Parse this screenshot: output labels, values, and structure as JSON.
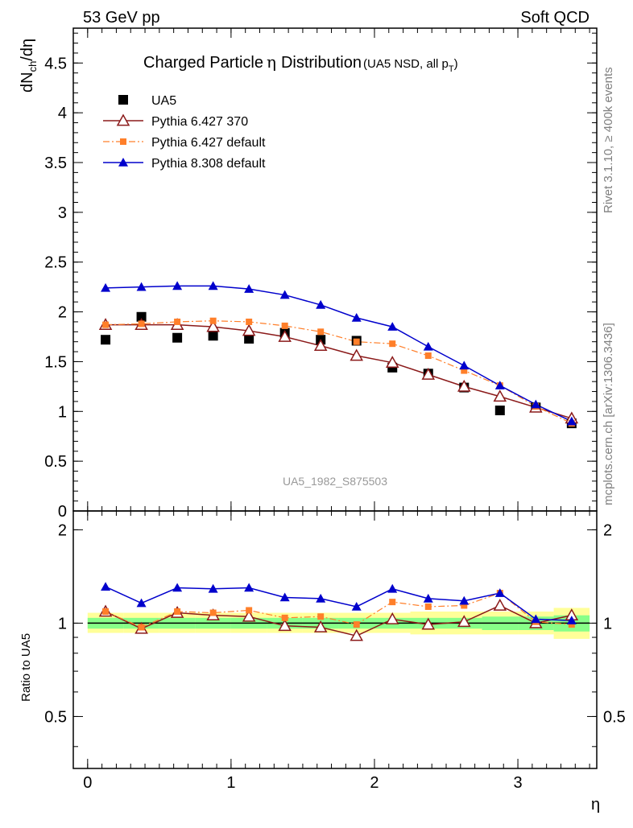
{
  "header": {
    "energy_label": "53 GeV pp",
    "category_label": "Soft QCD"
  },
  "side_text": {
    "rivet": "Rivet 3.1.10, ≥ 400k events",
    "mcplots": "mcplots.cern.ch [arXiv:1306.3436]"
  },
  "analysis_id": "UA5_1982_S875503",
  "chart_data": [
    {
      "type": "scatter",
      "panel": "main",
      "title": "Charged Particle η Distribution",
      "title_main": "Charged Particle",
      "title_eta": "η",
      "title_dist": "Distribution",
      "subtitle_prefix": "(UA5 NSD, all p",
      "subtitle_sub": "T",
      "subtitle_suffix": ")",
      "ylabel_main": "dN",
      "ylabel_sub": "ch",
      "ylabel_tail": "/dη",
      "xlabel": "",
      "xlim": [
        -0.1,
        3.55
      ],
      "ylim": [
        0,
        4.85
      ],
      "yticks": [
        "0",
        "0.5",
        "1",
        "1.5",
        "2",
        "2.5",
        "3",
        "3.5",
        "4",
        "4.5"
      ],
      "ytick_values": [
        0,
        0.5,
        1,
        1.5,
        2,
        2.5,
        3,
        3.5,
        4,
        4.5
      ],
      "x": [
        0.125,
        0.375,
        0.625,
        0.875,
        1.125,
        1.375,
        1.625,
        1.875,
        2.125,
        2.375,
        2.625,
        2.875,
        3.125,
        3.375
      ],
      "series": [
        {
          "name": "UA5",
          "style": "data",
          "color": "#000000",
          "values": [
            1.72,
            1.95,
            1.74,
            1.76,
            1.73,
            1.79,
            1.72,
            1.71,
            1.44,
            1.38,
            1.24,
            1.01,
            1.04,
            0.88
          ]
        },
        {
          "name": "Pythia 6.427 370",
          "style": "open-triangle",
          "color": "#8b1a1a",
          "values": [
            1.87,
            1.87,
            1.87,
            1.85,
            1.81,
            1.75,
            1.66,
            1.56,
            1.49,
            1.37,
            1.25,
            1.15,
            1.04,
            0.93
          ]
        },
        {
          "name": "Pythia 6.427 default",
          "style": "dashdot-square",
          "color": "#ff7f2a",
          "values": [
            1.87,
            1.88,
            1.9,
            1.91,
            1.9,
            1.86,
            1.8,
            1.7,
            1.68,
            1.56,
            1.41,
            1.26,
            1.05,
            0.88
          ]
        },
        {
          "name": "Pythia 8.308 default",
          "style": "filled-triangle",
          "color": "#0000cc",
          "values": [
            2.24,
            2.25,
            2.26,
            2.26,
            2.23,
            2.17,
            2.07,
            1.94,
            1.85,
            1.65,
            1.46,
            1.26,
            1.07,
            0.9
          ]
        }
      ]
    },
    {
      "type": "scatter",
      "panel": "ratio",
      "ylabel": "Ratio to UA5",
      "xlabel": "η",
      "xlim": [
        -0.1,
        3.55
      ],
      "ylim": [
        0.34,
        2.3
      ],
      "yscale": "log",
      "yticks": [
        "0.5",
        "1",
        "2"
      ],
      "ytick_values": [
        0.5,
        1,
        2
      ],
      "xticks": [
        "0",
        "1",
        "2",
        "3"
      ],
      "xtick_values": [
        0,
        1,
        2,
        3
      ],
      "x": [
        0.125,
        0.375,
        0.625,
        0.875,
        1.125,
        1.375,
        1.625,
        1.875,
        2.125,
        2.375,
        2.625,
        2.875,
        3.125,
        3.375
      ],
      "uncertainty_bands": {
        "yellow_lo": [
          0.93,
          0.93,
          0.93,
          0.93,
          0.93,
          0.93,
          0.93,
          0.93,
          0.93,
          0.92,
          0.92,
          0.92,
          0.92,
          0.89
        ],
        "yellow_hi": [
          1.08,
          1.08,
          1.08,
          1.08,
          1.08,
          1.08,
          1.08,
          1.08,
          1.08,
          1.09,
          1.09,
          1.09,
          1.09,
          1.12
        ],
        "green_lo": [
          0.96,
          0.96,
          0.96,
          0.96,
          0.96,
          0.96,
          0.96,
          0.96,
          0.96,
          0.96,
          0.96,
          0.95,
          0.95,
          0.94
        ],
        "green_hi": [
          1.04,
          1.04,
          1.04,
          1.04,
          1.04,
          1.04,
          1.04,
          1.04,
          1.04,
          1.04,
          1.04,
          1.05,
          1.05,
          1.06
        ]
      },
      "series": [
        {
          "name": "Pythia 6.427 370",
          "style": "open-triangle",
          "color": "#8b1a1a",
          "values": [
            1.09,
            0.96,
            1.08,
            1.06,
            1.05,
            0.98,
            0.97,
            0.91,
            1.03,
            0.99,
            1.01,
            1.14,
            1.0,
            1.06
          ]
        },
        {
          "name": "Pythia 6.427 default",
          "style": "dashdot-square",
          "color": "#ff7f2a",
          "values": [
            1.09,
            0.97,
            1.09,
            1.08,
            1.1,
            1.04,
            1.05,
            0.99,
            1.17,
            1.13,
            1.14,
            1.25,
            1.01,
            0.99
          ]
        },
        {
          "name": "Pythia 8.308 default",
          "style": "filled-triangle",
          "color": "#0000cc",
          "values": [
            1.31,
            1.16,
            1.3,
            1.29,
            1.3,
            1.21,
            1.2,
            1.13,
            1.29,
            1.2,
            1.18,
            1.25,
            1.03,
            1.02
          ]
        }
      ]
    }
  ]
}
